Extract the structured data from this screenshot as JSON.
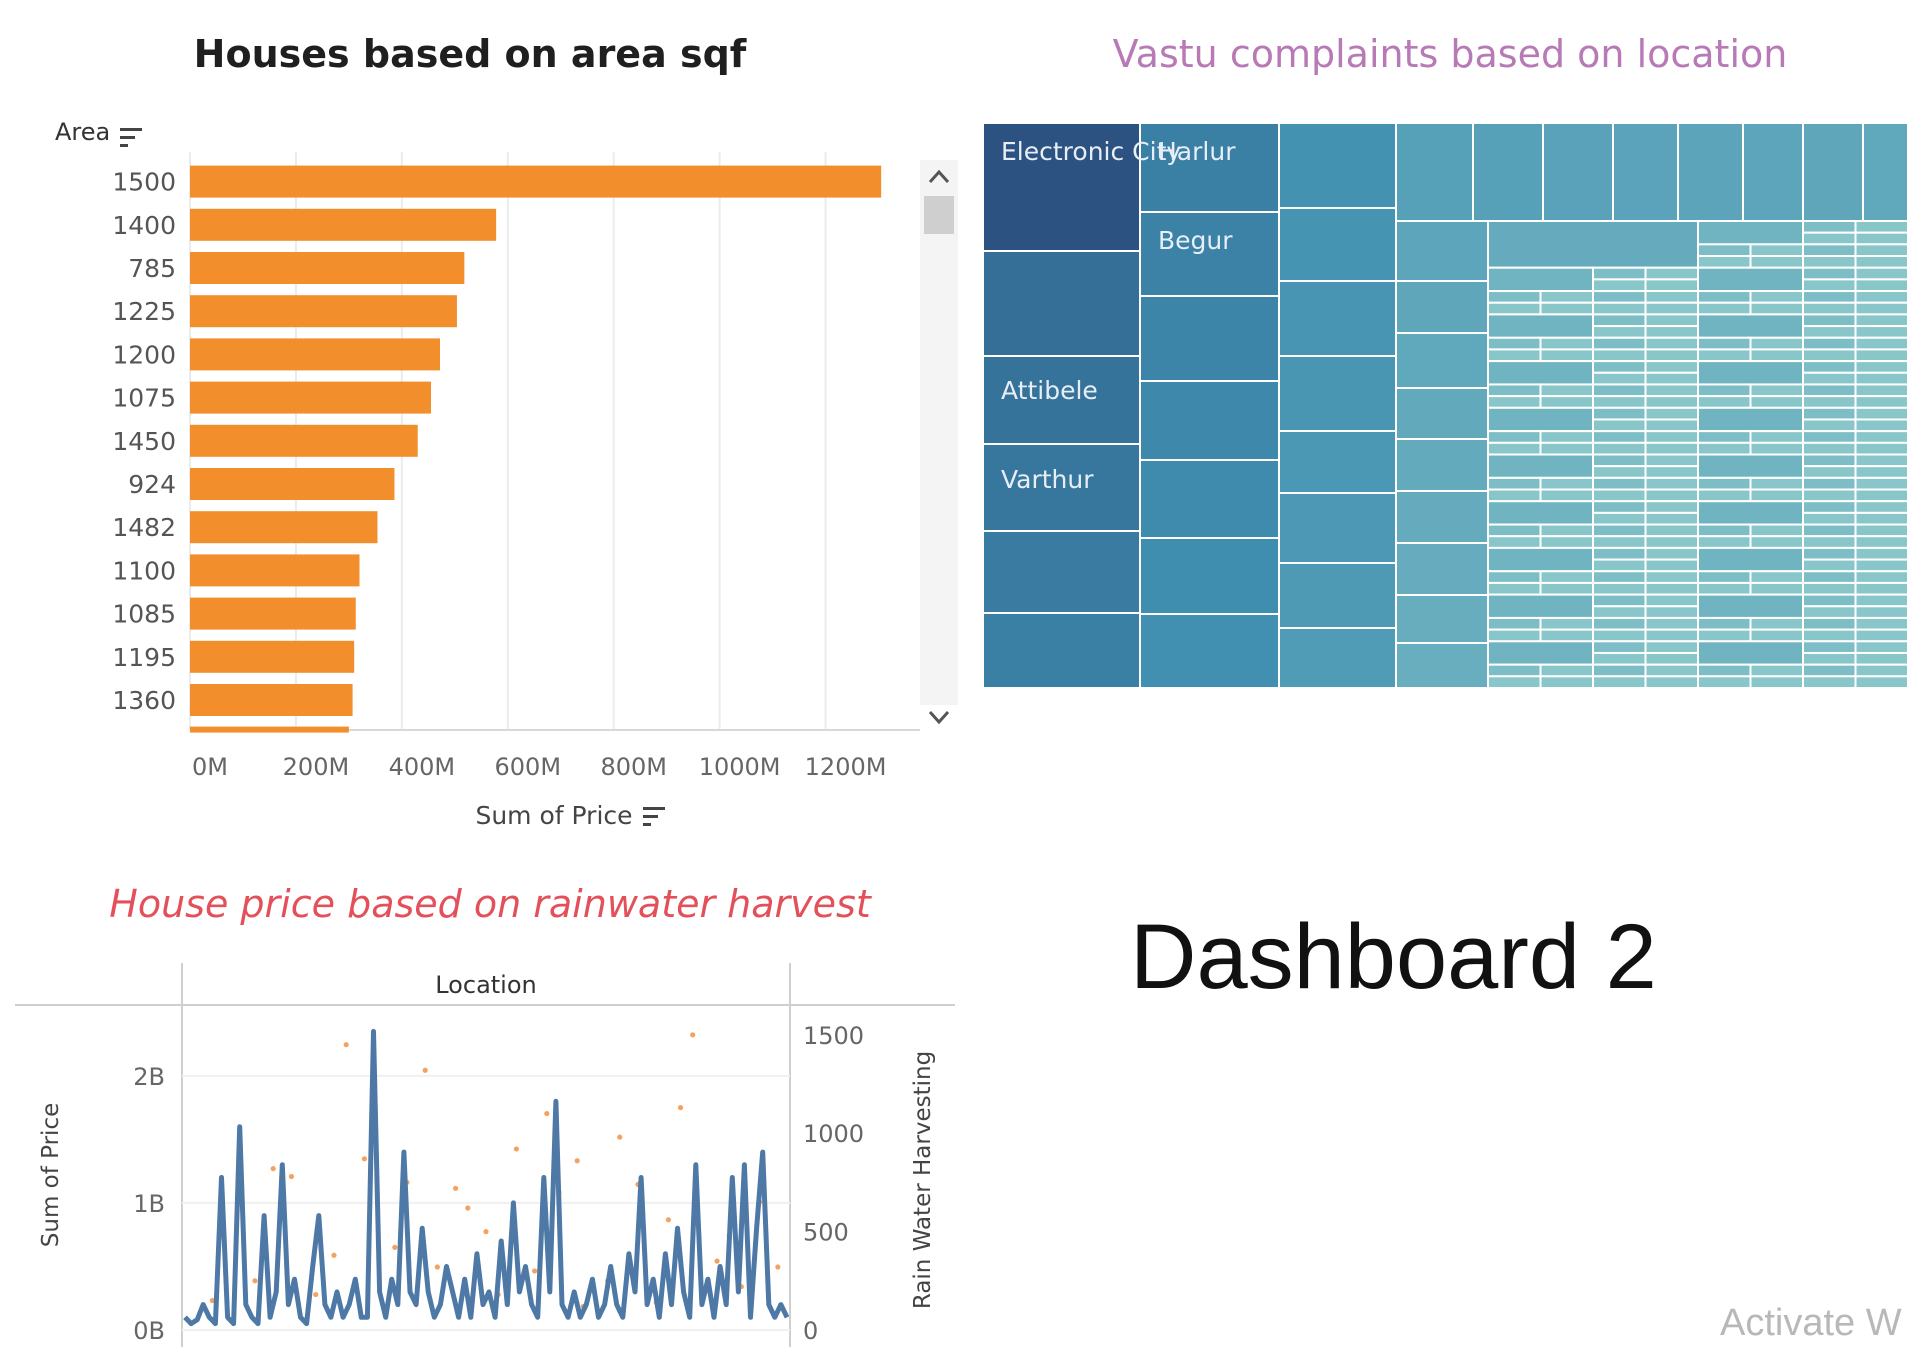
{
  "dashboard_title": "Dashboard 2",
  "watermark": "Activate W",
  "colors": {
    "bar": "#f28e2b",
    "line": "#4e79a7",
    "dots": "#f4a261",
    "treemap_dark": "#2c5282",
    "treemap_light": "#a8ddd5"
  },
  "chart_data": [
    {
      "type": "bar",
      "orientation": "horizontal",
      "title": "Houses based on area sqf",
      "ylabel": "Area",
      "xlabel": "Sum of Price",
      "categories": [
        "1500",
        "1400",
        "785",
        "1225",
        "1200",
        "1075",
        "1450",
        "924",
        "1482",
        "1100",
        "1085",
        "1195",
        "1360"
      ],
      "values": [
        1305,
        578,
        518,
        504,
        472,
        455,
        430,
        386,
        354,
        320,
        313,
        310,
        307
      ],
      "value_unit": "M",
      "x_ticks": [
        "0M",
        "200M",
        "400M",
        "600M",
        "800M",
        "1000M",
        "1200M"
      ],
      "xlim": [
        0,
        1350
      ],
      "grid": true
    },
    {
      "type": "treemap",
      "title": "Vastu complaints based on location",
      "labels": [
        "Electronic City",
        "Harlur",
        "Begur",
        "Attibele",
        "Varthur"
      ]
    },
    {
      "type": "line",
      "title": "House  price based on rainwater harvest",
      "header": "Location",
      "ylabel": "Sum of Price",
      "y2label": "Rain Water Harvesting",
      "y_ticks": [
        "0B",
        "1B",
        "2B"
      ],
      "y2_ticks": [
        "0",
        "500",
        "1000",
        "1500"
      ],
      "ylim": [
        0,
        2.4
      ],
      "y2lim": [
        0,
        1550
      ],
      "series": [
        {
          "type": "line",
          "axis": "left",
          "values": [
            0.1,
            0.05,
            0.08,
            0.2,
            0.1,
            0.05,
            1.2,
            0.1,
            0.05,
            1.6,
            0.2,
            0.1,
            0.05,
            0.9,
            0.1,
            0.3,
            1.3,
            0.2,
            0.4,
            0.1,
            0.05,
            0.5,
            0.9,
            0.2,
            0.1,
            0.3,
            0.1,
            0.2,
            0.4,
            0.1,
            0.1,
            2.35,
            0.3,
            0.1,
            0.4,
            0.2,
            1.4,
            0.3,
            0.2,
            0.8,
            0.3,
            0.1,
            0.2,
            0.5,
            0.3,
            0.1,
            0.4,
            0.1,
            0.6,
            0.2,
            0.3,
            0.1,
            0.7,
            0.2,
            1.0,
            0.3,
            0.5,
            0.2,
            0.1,
            1.2,
            0.3,
            1.8,
            0.2,
            0.1,
            0.3,
            0.1,
            0.2,
            0.4,
            0.1,
            0.2,
            0.5,
            0.2,
            0.1,
            0.6,
            0.3,
            1.2,
            0.2,
            0.4,
            0.1,
            0.6,
            0.2,
            0.8,
            0.3,
            0.1,
            1.3,
            0.2,
            0.4,
            0.1,
            0.5,
            0.2,
            1.2,
            0.3,
            1.3,
            0.1,
            0.8,
            1.4,
            0.2,
            0.1,
            0.2,
            0.1
          ]
        },
        {
          "type": "scatter",
          "axis": "right",
          "values": [
            [
              0.27,
              1450
            ],
            [
              0.4,
              1320
            ],
            [
              0.6,
              1100
            ],
            [
              0.84,
              1500
            ],
            [
              0.82,
              1130
            ],
            [
              0.72,
              980
            ],
            [
              0.3,
              870
            ],
            [
              0.45,
              720
            ],
            [
              0.37,
              750
            ],
            [
              0.55,
              920
            ],
            [
              0.65,
              860
            ],
            [
              0.15,
              820
            ],
            [
              0.18,
              780
            ],
            [
              0.5,
              500
            ],
            [
              0.75,
              740
            ],
            [
              0.95,
              650
            ],
            [
              0.47,
              620
            ],
            [
              0.62,
              700
            ],
            [
              0.9,
              480
            ],
            [
              0.25,
              380
            ],
            [
              0.35,
              420
            ],
            [
              0.58,
              300
            ],
            [
              0.7,
              250
            ],
            [
              0.8,
              560
            ],
            [
              0.88,
              350
            ],
            [
              0.12,
              250
            ],
            [
              0.05,
              150
            ],
            [
              0.22,
              180
            ],
            [
              0.42,
              320
            ],
            [
              0.52,
              180
            ],
            [
              0.66,
              120
            ],
            [
              0.78,
              140
            ],
            [
              0.92,
              220
            ],
            [
              0.98,
              320
            ]
          ]
        }
      ]
    }
  ]
}
